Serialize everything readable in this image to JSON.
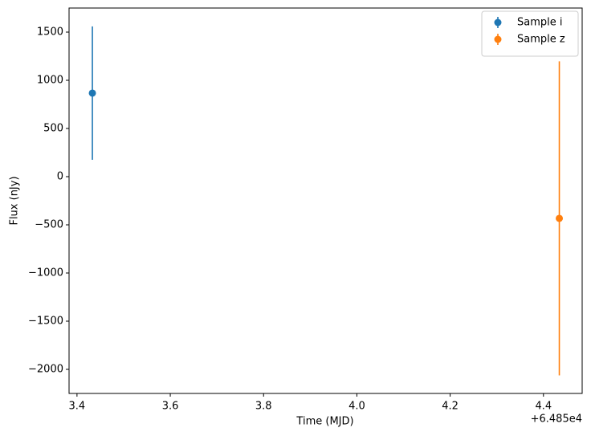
{
  "chart_data": {
    "type": "errorbar",
    "x_label": "Time (MJD)",
    "y_label": "Flux (nJy)",
    "x_offset_text": "+6.485e4",
    "xlim": [
      64853.383,
      64854.483
    ],
    "ylim": [
      -2250,
      1750
    ],
    "xticks": [
      {
        "value": 64853.4,
        "label": "3.4"
      },
      {
        "value": 64853.6,
        "label": "3.6"
      },
      {
        "value": 64853.8,
        "label": "3.8"
      },
      {
        "value": 64854.0,
        "label": "4.0"
      },
      {
        "value": 64854.2,
        "label": "4.2"
      },
      {
        "value": 64854.4,
        "label": "4.4"
      }
    ],
    "yticks": [
      {
        "value": -2000,
        "label": "−2000"
      },
      {
        "value": -1500,
        "label": "−1500"
      },
      {
        "value": -1000,
        "label": "−1000"
      },
      {
        "value": -500,
        "label": "−500"
      },
      0,
      500,
      1000,
      1500
    ],
    "legend": "upper right",
    "series": [
      {
        "name": "Sample i",
        "color": "#1f77b4",
        "x": [
          64853.433
        ],
        "values": [
          867
        ],
        "errors": [
          692
        ]
      },
      {
        "name": "Sample z",
        "color": "#ff7f0e",
        "x": [
          64854.434
        ],
        "values": [
          -433
        ],
        "errors": [
          1630
        ]
      }
    ]
  }
}
